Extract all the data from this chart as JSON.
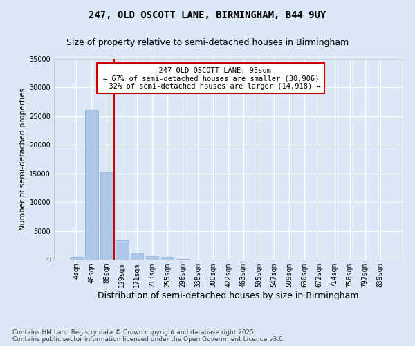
{
  "title": "247, OLD OSCOTT LANE, BIRMINGHAM, B44 9UY",
  "subtitle": "Size of property relative to semi-detached houses in Birmingham",
  "xlabel": "Distribution of semi-detached houses by size in Birmingham",
  "ylabel": "Number of semi-detached properties",
  "categories": [
    "4sqm",
    "46sqm",
    "88sqm",
    "129sqm",
    "171sqm",
    "213sqm",
    "255sqm",
    "296sqm",
    "338sqm",
    "380sqm",
    "422sqm",
    "463sqm",
    "505sqm",
    "547sqm",
    "589sqm",
    "630sqm",
    "672sqm",
    "714sqm",
    "756sqm",
    "797sqm",
    "839sqm"
  ],
  "values": [
    400,
    26100,
    15200,
    3400,
    1100,
    600,
    350,
    100,
    0,
    0,
    0,
    0,
    0,
    0,
    0,
    0,
    0,
    0,
    0,
    0,
    0
  ],
  "bar_color": "#aec6e8",
  "bar_edge_color": "#8ab4d8",
  "background_color": "#dce8f5",
  "grid_color": "#ffffff",
  "ylim": [
    0,
    35000
  ],
  "yticks": [
    0,
    5000,
    10000,
    15000,
    20000,
    25000,
    30000,
    35000
  ],
  "property_label": "247 OLD OSCOTT LANE: 95sqm",
  "pct_smaller": 67,
  "count_smaller": 30906,
  "pct_larger": 32,
  "count_larger": 14918,
  "vline_color": "#cc0000",
  "annotation_box_color": "#cc0000",
  "footnote": "Contains HM Land Registry data © Crown copyright and database right 2025.\nContains public sector information licensed under the Open Government Licence v3.0.",
  "title_fontsize": 10,
  "subtitle_fontsize": 9,
  "ylabel_fontsize": 8,
  "xlabel_fontsize": 9,
  "annotation_fontsize": 7.5,
  "tick_fontsize": 7,
  "footnote_fontsize": 6.5
}
